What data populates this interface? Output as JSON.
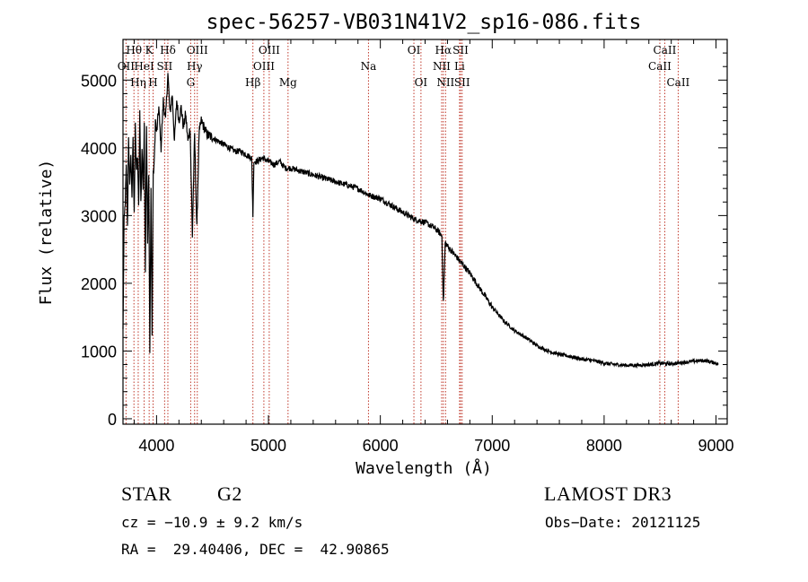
{
  "chart_data": {
    "type": "line",
    "title": "spec-56257-VB031N41V2_sp16-086.fits",
    "xlabel": "Wavelength (Å)",
    "ylabel": "Flux (relative)",
    "xlim": [
      3700,
      9100
    ],
    "ylim": [
      -80,
      5600
    ],
    "xticks": [
      4000,
      5000,
      6000,
      7000,
      8000,
      9000
    ],
    "yticks": [
      0,
      1000,
      2000,
      3000,
      4000,
      5000
    ],
    "series": [
      {
        "name": "flux",
        "x": [
          3700,
          3710,
          3720,
          3730,
          3740,
          3750,
          3760,
          3770,
          3780,
          3790,
          3800,
          3810,
          3820,
          3830,
          3840,
          3850,
          3860,
          3870,
          3880,
          3890,
          3900,
          3910,
          3920,
          3930,
          3940,
          3950,
          3960,
          3970,
          3980,
          3990,
          4000,
          4020,
          4040,
          4060,
          4080,
          4101,
          4120,
          4140,
          4160,
          4180,
          4200,
          4220,
          4240,
          4260,
          4280,
          4300,
          4320,
          4340,
          4360,
          4380,
          4400,
          4450,
          4500,
          4550,
          4600,
          4650,
          4700,
          4750,
          4800,
          4850,
          4861,
          4870,
          4900,
          4950,
          5000,
          5050,
          5100,
          5150,
          5200,
          5300,
          5400,
          5500,
          5600,
          5700,
          5800,
          5900,
          6000,
          6100,
          6200,
          6300,
          6400,
          6500,
          6550,
          6563,
          6580,
          6600,
          6650,
          6700,
          6800,
          6900,
          7000,
          7100,
          7200,
          7300,
          7400,
          7500,
          7600,
          7700,
          7800,
          7900,
          8000,
          8100,
          8200,
          8300,
          8400,
          8500,
          8600,
          8700,
          8800,
          8900,
          9000,
          9020
        ],
        "y": [
          1300,
          2900,
          3200,
          3700,
          2800,
          4200,
          3400,
          3900,
          3300,
          4100,
          3000,
          4400,
          3600,
          3900,
          3100,
          4500,
          3200,
          4000,
          3400,
          4300,
          2200,
          4400,
          2600,
          3600,
          950,
          3400,
          1200,
          3600,
          3800,
          4400,
          4200,
          4600,
          4000,
          4700,
          4400,
          5100,
          4500,
          4800,
          4100,
          4700,
          4400,
          4600,
          4300,
          4500,
          4100,
          4300,
          2700,
          4200,
          2800,
          4200,
          4400,
          4200,
          4150,
          4100,
          4050,
          4000,
          3950,
          3950,
          3900,
          3850,
          3000,
          3800,
          3800,
          3850,
          3800,
          3750,
          3800,
          3700,
          3700,
          3650,
          3600,
          3550,
          3500,
          3450,
          3400,
          3300,
          3250,
          3150,
          3050,
          2950,
          2900,
          2800,
          2700,
          1700,
          2600,
          2550,
          2450,
          2350,
          2150,
          1900,
          1650,
          1450,
          1300,
          1200,
          1080,
          1000,
          950,
          920,
          880,
          860,
          820,
          800,
          790,
          790,
          800,
          820,
          810,
          830,
          850,
          860,
          820,
          800
        ]
      }
    ],
    "lines": [
      {
        "name": "Hθ",
        "wave": 3798,
        "label_pos": "top"
      },
      {
        "name": "OII",
        "wave": 3727,
        "label_pos": "mid"
      },
      {
        "name": "Hη",
        "wave": 3836,
        "label_pos": "low"
      },
      {
        "name": "HeI",
        "wave": 3889,
        "label_pos": "mid"
      },
      {
        "name": "K",
        "wave": 3934,
        "label_pos": "top"
      },
      {
        "name": "H",
        "wave": 3969,
        "label_pos": "low"
      },
      {
        "name": "SII",
        "wave": 4072,
        "label_pos": "mid"
      },
      {
        "name": "Hδ",
        "wave": 4101,
        "label_pos": "top"
      },
      {
        "name": "OIII",
        "wave": 4364,
        "label_pos": "top"
      },
      {
        "name": "Hγ",
        "wave": 4340,
        "label_pos": "mid"
      },
      {
        "name": "G",
        "wave": 4305,
        "label_pos": "low"
      },
      {
        "name": "Hβ",
        "wave": 4861,
        "label_pos": "low"
      },
      {
        "name": "OIII",
        "wave": 5007,
        "label_pos": "top"
      },
      {
        "name": "OIII",
        "wave": 4959,
        "label_pos": "mid"
      },
      {
        "name": "Mg",
        "wave": 5175,
        "label_pos": "low"
      },
      {
        "name": "Na",
        "wave": 5894,
        "label_pos": "mid"
      },
      {
        "name": "OI",
        "wave": 6300,
        "label_pos": "top"
      },
      {
        "name": "OI",
        "wave": 6363,
        "label_pos": "low"
      },
      {
        "name": "Hα",
        "wave": 6563,
        "label_pos": "top"
      },
      {
        "name": "NII",
        "wave": 6548,
        "label_pos": "mid"
      },
      {
        "name": "NII",
        "wave": 6583,
        "label_pos": "low"
      },
      {
        "name": "SII",
        "wave": 6717,
        "label_pos": "top"
      },
      {
        "name": "Li",
        "wave": 6708,
        "label_pos": "mid"
      },
      {
        "name": "SII",
        "wave": 6731,
        "label_pos": "low"
      },
      {
        "name": "CaII",
        "wave": 8542,
        "label_pos": "top"
      },
      {
        "name": "CaII",
        "wave": 8498,
        "label_pos": "mid"
      },
      {
        "name": "CaII",
        "wave": 8662,
        "label_pos": "low"
      }
    ]
  },
  "info": {
    "class": "STAR",
    "subclass": "G2",
    "cz": "cz = −10.9 ± 9.2 km/s",
    "coords": "RA =  29.40406, DEC =  42.90865",
    "survey": "LAMOST DR3",
    "obs_date": "Obs−Date: 20121125"
  },
  "colors": {
    "axis": "#000000",
    "spectrum": "#000000",
    "line_markers": "#c0392b"
  }
}
